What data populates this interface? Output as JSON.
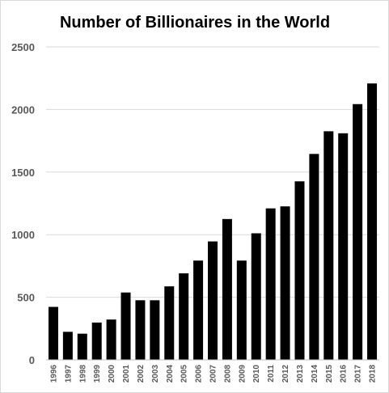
{
  "chart_data": {
    "type": "bar",
    "title": "Number of Billionaires in the World",
    "xlabel": "",
    "ylabel": "",
    "ylim": [
      0,
      2500
    ],
    "yticks": [
      0,
      500,
      1000,
      1500,
      2000,
      2500
    ],
    "grid": true,
    "legend": "none",
    "bar_color": "#000000",
    "categories": [
      "1996",
      "1997",
      "1998",
      "1999",
      "2000",
      "2001",
      "2002",
      "2003",
      "2004",
      "2005",
      "2006",
      "2007",
      "2008",
      "2009",
      "2010",
      "2011",
      "2012",
      "2013",
      "2014",
      "2015",
      "2016",
      "2017",
      "2018"
    ],
    "values": [
      423,
      224,
      209,
      298,
      322,
      538,
      476,
      476,
      587,
      691,
      793,
      946,
      1125,
      793,
      1011,
      1210,
      1226,
      1426,
      1645,
      1826,
      1810,
      2043,
      2208
    ]
  }
}
